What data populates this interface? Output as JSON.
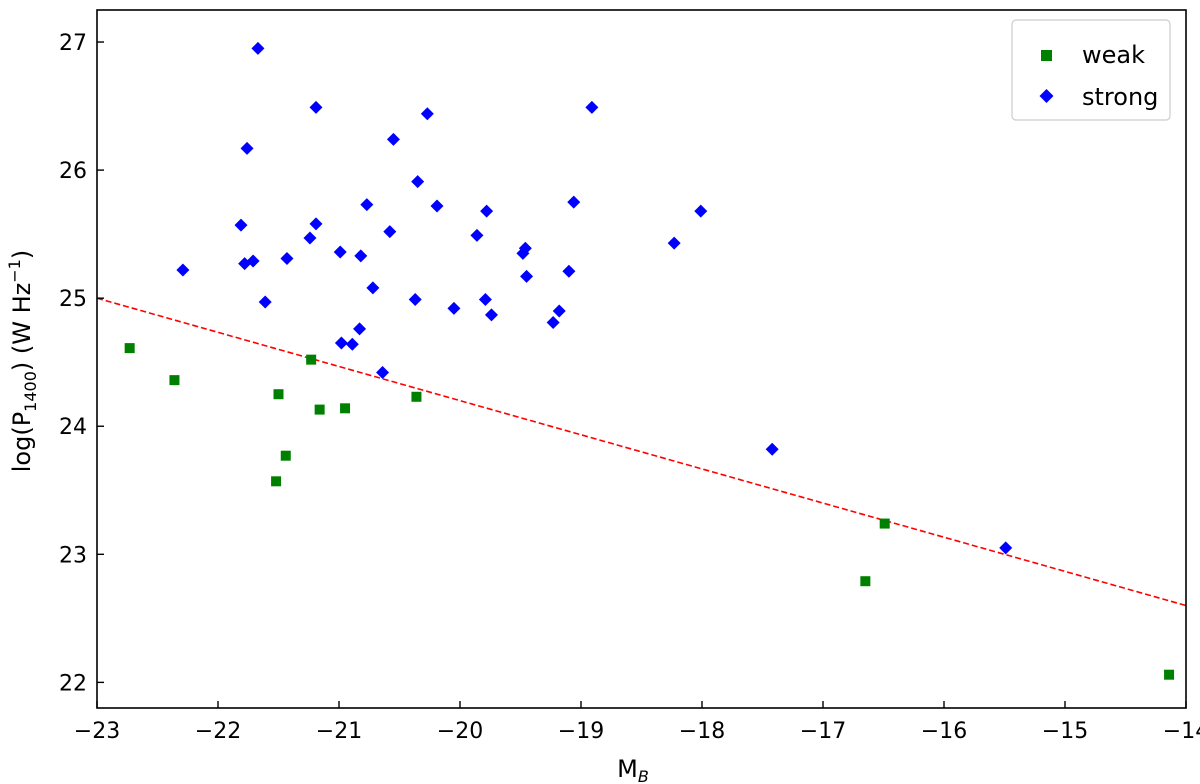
{
  "chart_data": {
    "type": "scatter",
    "title": "",
    "xlabel": "M_B",
    "xlabel_main": "M",
    "xlabel_sub": "B",
    "ylabel": "log(P_1400) (W Hz^-1)",
    "ylabel_pre": "log(P",
    "ylabel_sub": "1400",
    "ylabel_mid": ") (W Hz",
    "ylabel_sup": "−1",
    "ylabel_post": ")",
    "xlim": [
      -23,
      -14
    ],
    "ylim": [
      21.8,
      27.25
    ],
    "xticks": [
      -23,
      -22,
      -21,
      -20,
      -19,
      -18,
      -17,
      -16,
      -15,
      -14
    ],
    "xtick_labels": [
      "−23",
      "−22",
      "−21",
      "−20",
      "−19",
      "−18",
      "−17",
      "−16",
      "−15",
      "−14"
    ],
    "yticks": [
      22,
      23,
      24,
      25,
      26,
      27
    ],
    "ytick_labels": [
      "22",
      "23",
      "24",
      "25",
      "26",
      "27"
    ],
    "grid": false,
    "legend_position": "top-right",
    "series": [
      {
        "name": "weak",
        "marker": "square",
        "color": "#008000",
        "points": [
          [
            -22.73,
            24.61
          ],
          [
            -22.36,
            24.36
          ],
          [
            -21.5,
            24.25
          ],
          [
            -21.52,
            23.57
          ],
          [
            -21.44,
            23.77
          ],
          [
            -21.23,
            24.52
          ],
          [
            -21.16,
            24.13
          ],
          [
            -20.95,
            24.14
          ],
          [
            -20.36,
            24.23
          ],
          [
            -16.65,
            22.79
          ],
          [
            -16.49,
            23.24
          ],
          [
            -14.14,
            22.06
          ]
        ]
      },
      {
        "name": "strong",
        "marker": "diamond",
        "color": "#0000ff",
        "points": [
          [
            -22.29,
            25.22
          ],
          [
            -21.81,
            25.57
          ],
          [
            -21.78,
            25.27
          ],
          [
            -21.76,
            26.17
          ],
          [
            -21.71,
            25.29
          ],
          [
            -21.67,
            26.95
          ],
          [
            -21.61,
            24.97
          ],
          [
            -21.43,
            25.31
          ],
          [
            -21.24,
            25.47
          ],
          [
            -21.19,
            25.58
          ],
          [
            -21.19,
            26.49
          ],
          [
            -20.99,
            25.36
          ],
          [
            -20.98,
            24.65
          ],
          [
            -20.89,
            24.64
          ],
          [
            -20.83,
            24.76
          ],
          [
            -20.82,
            25.33
          ],
          [
            -20.77,
            25.73
          ],
          [
            -20.72,
            25.08
          ],
          [
            -20.64,
            24.42
          ],
          [
            -20.58,
            25.52
          ],
          [
            -20.55,
            26.24
          ],
          [
            -20.37,
            24.99
          ],
          [
            -20.35,
            25.91
          ],
          [
            -20.27,
            26.44
          ],
          [
            -20.19,
            25.72
          ],
          [
            -20.05,
            24.92
          ],
          [
            -19.86,
            25.49
          ],
          [
            -19.79,
            24.99
          ],
          [
            -19.78,
            25.68
          ],
          [
            -19.74,
            24.87
          ],
          [
            -19.48,
            25.35
          ],
          [
            -19.46,
            25.39
          ],
          [
            -19.45,
            25.17
          ],
          [
            -19.23,
            24.81
          ],
          [
            -19.18,
            24.9
          ],
          [
            -19.1,
            25.21
          ],
          [
            -19.06,
            25.75
          ],
          [
            -18.91,
            26.49
          ],
          [
            -18.23,
            25.43
          ],
          [
            -18.01,
            25.68
          ],
          [
            -17.42,
            23.82
          ],
          [
            -15.49,
            23.05
          ]
        ]
      }
    ],
    "fit_line": {
      "style": "dashed",
      "color": "#ff0000",
      "x": [
        -23,
        -14
      ],
      "y": [
        25.0,
        22.6
      ]
    }
  }
}
